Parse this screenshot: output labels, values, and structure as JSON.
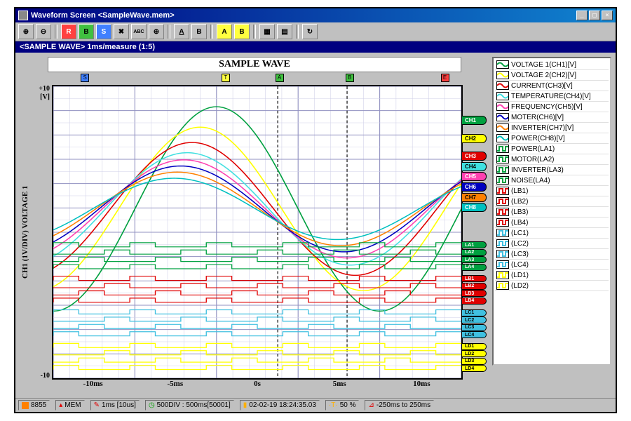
{
  "window": {
    "title": "Waveform Screen <SampleWave.mem>",
    "min": "_",
    "max": "□",
    "close": "×"
  },
  "infobar": "<SAMPLE WAVE> 1ms/measure (1:5)",
  "plot": {
    "title": "SAMPLE WAVE",
    "yaxis_label": "CH1 (1V/DIV)\nVOLTAGE 1",
    "y_top": "+10",
    "y_unit": "[V]",
    "y_bottom": "-10",
    "xticks": [
      "-10ms",
      "-5ms",
      "0s",
      "5ms",
      "10ms"
    ],
    "xlim": [
      -12.5,
      12.5
    ],
    "ylim": [
      -12,
      12
    ],
    "bg": "#ffffff",
    "grid_major": "#9090c0",
    "grid_minor": "#d0d0e8",
    "markers": [
      {
        "label": "S",
        "pos": 0.08,
        "color": "#4080ff"
      },
      {
        "label": "T",
        "pos": 0.42,
        "color": "#ffff40"
      },
      {
        "label": "A",
        "pos": 0.55,
        "color": "#40c040"
      },
      {
        "label": "B",
        "pos": 0.72,
        "color": "#40c040"
      },
      {
        "label": "E",
        "pos": 0.95,
        "color": "#ff4040"
      }
    ],
    "cursors": [
      0.55,
      0.72
    ],
    "analog_channels": [
      {
        "id": "CH1",
        "color": "#00a040",
        "amp": 10,
        "phase": 0,
        "tab_y": 0.12
      },
      {
        "id": "CH2",
        "color": "#ffff00",
        "amp": 8,
        "phase": 0.1,
        "tab_y": 0.18
      },
      {
        "id": "CH3",
        "color": "#e00000",
        "amp": 6.5,
        "phase": 0.15,
        "tab_y": 0.24
      },
      {
        "id": "CH4",
        "color": "#40e0e0",
        "amp": 5.5,
        "phase": 0.18,
        "tab_y": 0.275
      },
      {
        "id": "CH5",
        "color": "#ff40b0",
        "amp": 4.8,
        "phase": 0.2,
        "tab_y": 0.31
      },
      {
        "id": "CH6",
        "color": "#0000c0",
        "amp": 4.2,
        "phase": 0.22,
        "tab_y": 0.345
      },
      {
        "id": "CH7",
        "color": "#ff8000",
        "amp": 3.6,
        "phase": 0.24,
        "tab_y": 0.38
      },
      {
        "id": "CH8",
        "color": "#00c0c0",
        "amp": 3.0,
        "phase": 0.26,
        "tab_y": 0.415
      }
    ],
    "logic_groups": [
      {
        "prefix": "LA",
        "color": "#00a040",
        "base_y": 0.55,
        "count": 4
      },
      {
        "prefix": "LB",
        "color": "#e00000",
        "base_y": 0.665,
        "count": 4
      },
      {
        "prefix": "LC",
        "color": "#40c0e0",
        "base_y": 0.78,
        "count": 4
      },
      {
        "prefix": "LD",
        "color": "#ffff00",
        "base_y": 0.895,
        "count": 4
      }
    ]
  },
  "legend": [
    {
      "swatch": "#00a040",
      "type": "wave",
      "label": "VOLTAGE 1(CH1)[V]"
    },
    {
      "swatch": "#ffff00",
      "type": "wave",
      "label": "VOLTAGE 2(CH2)[V]"
    },
    {
      "swatch": "#e00000",
      "type": "wave",
      "label": "CURRENT(CH3)[V]"
    },
    {
      "swatch": "#40e0e0",
      "type": "wave",
      "label": "TEMPERATURE(CH4)[V]"
    },
    {
      "swatch": "#ff40b0",
      "type": "wave",
      "label": "FREQUENCY(CH5)[V]"
    },
    {
      "swatch": "#0000c0",
      "type": "wave",
      "label": "MOTER(CH6)[V]"
    },
    {
      "swatch": "#ff8000",
      "type": "wave",
      "label": "INVERTER(CH7)[V]"
    },
    {
      "swatch": "#00c0c0",
      "type": "wave",
      "label": "POWER(CH8)[V]"
    },
    {
      "swatch": "#00a040",
      "type": "logic",
      "label": "POWER(LA1)"
    },
    {
      "swatch": "#00a040",
      "type": "logic",
      "label": "MOTOR(LA2)"
    },
    {
      "swatch": "#00a040",
      "type": "logic",
      "label": "INVERTER(LA3)"
    },
    {
      "swatch": "#00a040",
      "type": "logic",
      "label": "NOISE(LA4)"
    },
    {
      "swatch": "#e00000",
      "type": "logic",
      "label": "(LB1)"
    },
    {
      "swatch": "#e00000",
      "type": "logic",
      "label": "(LB2)"
    },
    {
      "swatch": "#e00000",
      "type": "logic",
      "label": "(LB3)"
    },
    {
      "swatch": "#e00000",
      "type": "logic",
      "label": "(LB4)"
    },
    {
      "swatch": "#40c0e0",
      "type": "logic",
      "label": "(LC1)"
    },
    {
      "swatch": "#40c0e0",
      "type": "logic",
      "label": "(LC2)"
    },
    {
      "swatch": "#40c0e0",
      "type": "logic",
      "label": "(LC3)"
    },
    {
      "swatch": "#40c0e0",
      "type": "logic",
      "label": "(LC4)"
    },
    {
      "swatch": "#ffff00",
      "type": "logic",
      "label": "(LD1)"
    },
    {
      "swatch": "#ffff00",
      "type": "logic",
      "label": "(LD2)"
    }
  ],
  "status": {
    "device": "8855",
    "mem": "MEM",
    "timediv": "1ms [10us]",
    "shot": "500DIV : 500ms[50001]",
    "datetime": "02-02-19 18:24:35.03",
    "trig": "50 %",
    "range": "-250ms to 250ms"
  },
  "toolbar": {
    "zoomIn": "⊕",
    "zoomOut": "⊖",
    "btnA": "A",
    "btnB": "B"
  }
}
